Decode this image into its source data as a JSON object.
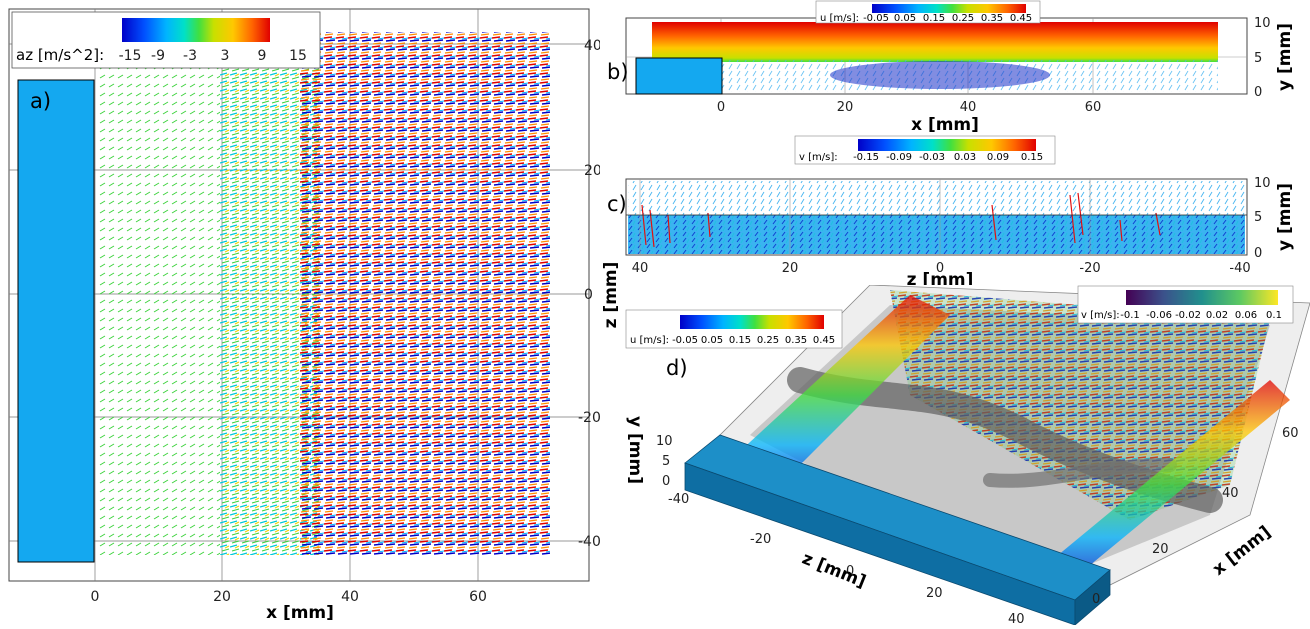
{
  "panels": {
    "a": {
      "label": "a)",
      "colorbar": {
        "title": "az [m/s^2]:",
        "ticks": [
          "-15",
          "-9",
          "-3",
          "3",
          "9",
          "15"
        ]
      },
      "x_axis": {
        "title": "x [mm]",
        "ticks": [
          "0",
          "20",
          "40",
          "60"
        ]
      },
      "z_axis": {
        "title": "z [mm]",
        "ticks": [
          "40",
          "20",
          "0",
          "-20",
          "-40"
        ]
      }
    },
    "b": {
      "label": "b)",
      "colorbar": {
        "title": "u [m/s]:",
        "ticks": [
          "-0.05",
          "0.05",
          "0.15",
          "0.25",
          "0.35",
          "0.45"
        ]
      },
      "x_axis": {
        "title": "x [mm]",
        "ticks": [
          "0",
          "20",
          "40",
          "60"
        ]
      },
      "y_axis": {
        "title": "y [mm]",
        "ticks": [
          "10",
          "5",
          "0"
        ]
      }
    },
    "c": {
      "label": "c)",
      "colorbar": {
        "title": "v [m/s]:",
        "ticks": [
          "-0.15",
          "-0.09",
          "-0.03",
          "0.03",
          "0.09",
          "0.15"
        ]
      },
      "z_axis": {
        "title": "z [mm]",
        "ticks": [
          "40",
          "20",
          "0",
          "-20",
          "-40"
        ]
      },
      "y_axis": {
        "title": "y [mm]",
        "ticks": [
          "10",
          "5",
          "0"
        ]
      }
    },
    "d": {
      "label": "d)",
      "colorbar_u": {
        "title": "u [m/s]:",
        "ticks": [
          "-0.05",
          "0.05",
          "0.15",
          "0.25",
          "0.35",
          "0.45"
        ]
      },
      "colorbar_v": {
        "title": "v [m/s]:",
        "ticks": [
          "-0.1",
          "-0.06",
          "-0.02",
          "0.02",
          "0.06",
          "0.1"
        ]
      },
      "y_axis": {
        "title": "y [mm]",
        "ticks": [
          "10",
          "5",
          "0"
        ]
      },
      "z_axis": {
        "title": "z [mm]",
        "ticks": [
          "-40",
          "-20",
          "0",
          "20",
          "40"
        ]
      },
      "x_axis": {
        "title": "x [mm]",
        "ticks": [
          "0",
          "20",
          "40",
          "60"
        ]
      }
    }
  },
  "colors": {
    "block": "#14a8f0",
    "block_3d_top": "#1d8fc8",
    "block_3d_side": "#0e6ea3",
    "jet_cmap": [
      "#0000c8",
      "#0050ff",
      "#00b4ff",
      "#00e0c8",
      "#40e040",
      "#c8e000",
      "#ffc800",
      "#ff6400",
      "#e00000"
    ],
    "viridis_cmap": [
      "#440154",
      "#3b528b",
      "#21908d",
      "#5dc962",
      "#fde725"
    ]
  }
}
